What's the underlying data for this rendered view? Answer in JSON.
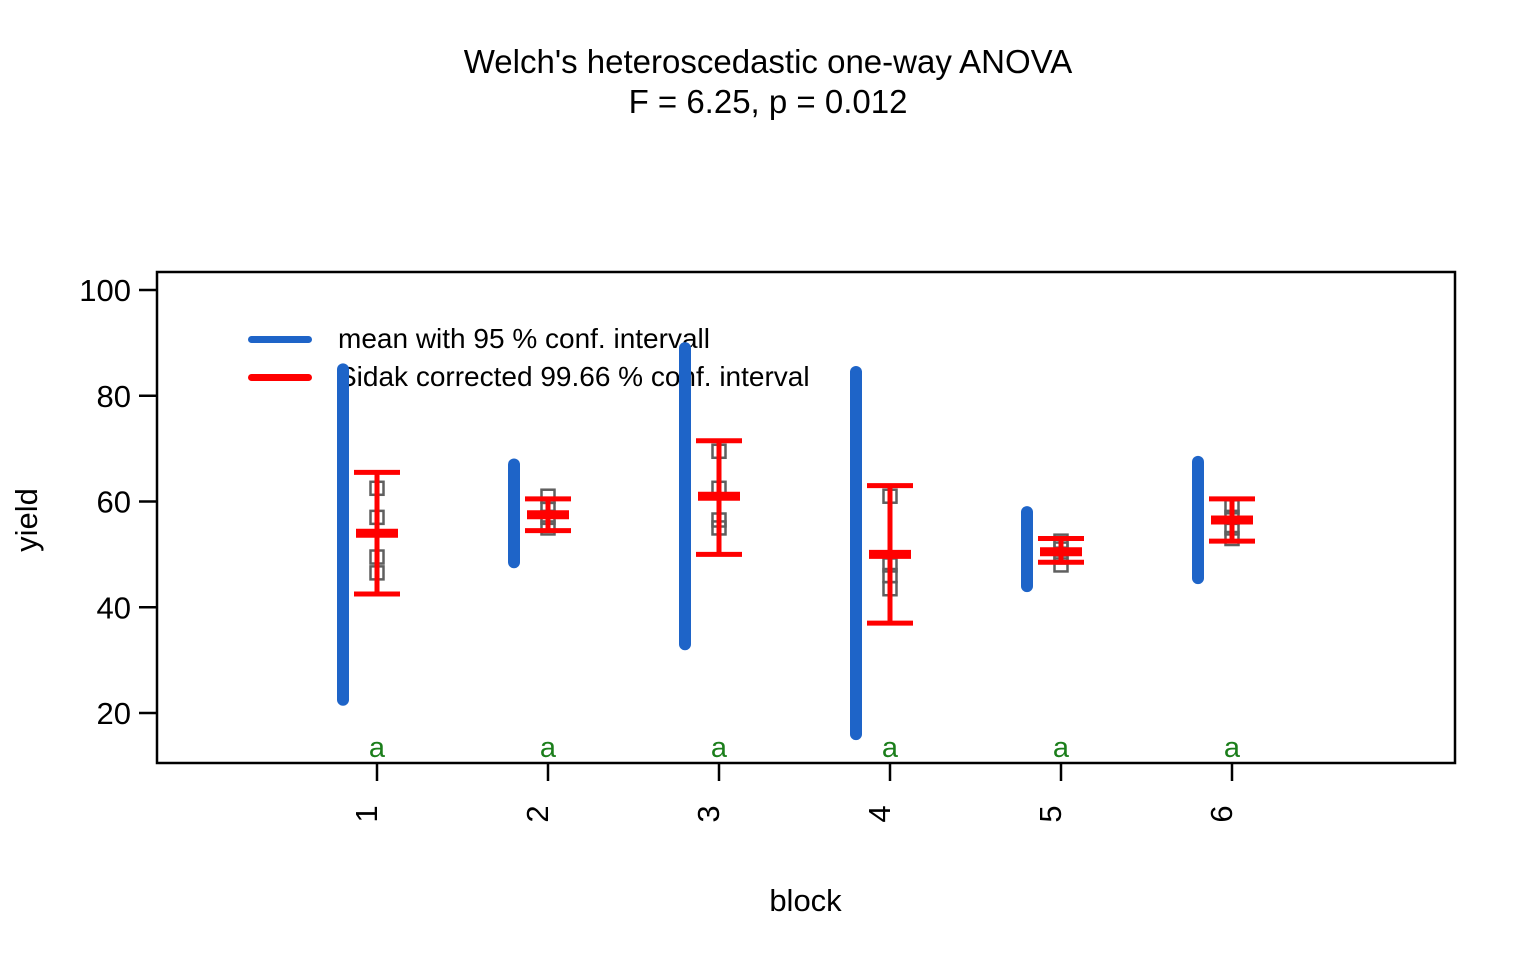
{
  "title": {
    "line1": "Welch's heteroscedastic one-way ANOVA",
    "line2": "F = 6.25, p = 0.012"
  },
  "axes": {
    "x_label": "block",
    "y_label": "yield",
    "y_tick_labels": [
      "20",
      "40",
      "60",
      "80",
      "100"
    ],
    "x_tick_labels": [
      "1",
      "2",
      "3",
      "4",
      "5",
      "6"
    ]
  },
  "legend": {
    "items": [
      {
        "label": "mean with 95 % conf. intervall",
        "color_key": "blue"
      },
      {
        "label": "Sidak corrected 99.66 % conf. interval",
        "color_key": "red"
      }
    ]
  },
  "colors": {
    "blue": "#1e64c8",
    "red": "#ff0000",
    "green": "#1b7e1b",
    "grey": "#5f5f5f",
    "axis": "#000000",
    "background": "#ffffff"
  },
  "chart_data": {
    "type": "interval",
    "title": "Welch's heteroscedastic one-way ANOVA",
    "subtitle": "F = 6.25, p = 0.012",
    "xlabel": "block",
    "ylabel": "yield",
    "categories": [
      "1",
      "2",
      "3",
      "4",
      "5",
      "6"
    ],
    "y_ticks": [
      20,
      40,
      60,
      80,
      100
    ],
    "ylim": [
      10.5,
      103.5
    ],
    "grid": false,
    "legend_position": "top-left-inside",
    "cld_letters": [
      "a",
      "a",
      "a",
      "a",
      "a",
      "a"
    ],
    "series": [
      {
        "name": "mean with 95 % conf. intervall",
        "type": "ci-bar",
        "color_key": "blue",
        "intervals": [
          [
            22.5,
            85
          ],
          [
            48.5,
            67
          ],
          [
            33,
            89
          ],
          [
            16,
            84.5
          ],
          [
            44,
            58
          ],
          [
            45.5,
            67.5
          ]
        ]
      },
      {
        "name": "Sidak corrected 99.66 % conf. interval",
        "type": "errorbar-with-mean",
        "color_key": "red",
        "means": [
          54,
          57.5,
          61,
          50,
          50.5,
          56.5
        ],
        "intervals": [
          [
            42.5,
            65.5
          ],
          [
            54.5,
            60.5
          ],
          [
            50,
            71.5
          ],
          [
            37,
            63
          ],
          [
            48.5,
            53
          ],
          [
            52.5,
            60.5
          ]
        ]
      },
      {
        "name": "observations",
        "type": "points",
        "marker": "open-square",
        "color_key": "grey",
        "values": [
          [
            62.5,
            57,
            49.5,
            46.5
          ],
          [
            61,
            58.5,
            57,
            55
          ],
          [
            69.5,
            62.5,
            56.5,
            55
          ],
          [
            61,
            48,
            46,
            43.5
          ],
          [
            52.5,
            51,
            49.5,
            48
          ],
          [
            59,
            57,
            55,
            53
          ]
        ]
      }
    ]
  }
}
